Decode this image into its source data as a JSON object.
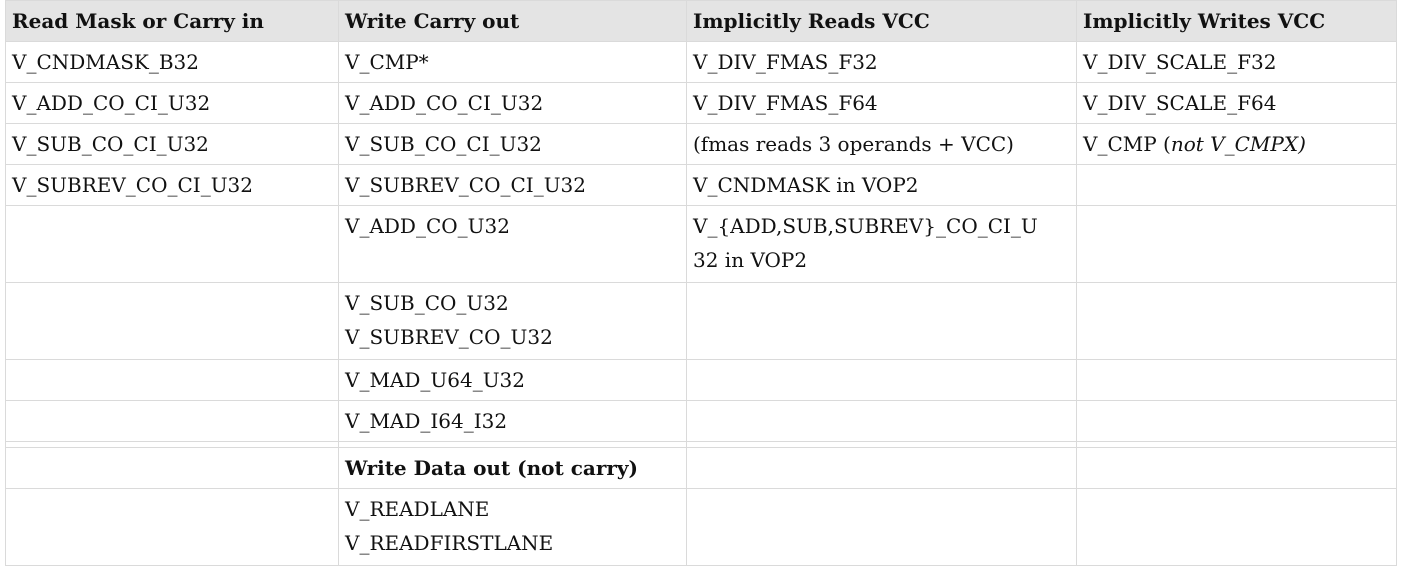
{
  "table": {
    "headers": [
      "Read Mask or Carry in",
      "Write Carry out",
      "Implicitly Reads VCC",
      "Implicitly Writes VCC"
    ],
    "rows": [
      {
        "read_mask": "V_CNDMASK_B32",
        "write_carry": "V_CMP*",
        "reads_vcc": "V_DIV_FMAS_F32",
        "writes_vcc": "V_DIV_SCALE_F32"
      },
      {
        "read_mask": "V_ADD_CO_CI_U32",
        "write_carry": "V_ADD_CO_CI_U32",
        "reads_vcc": "V_DIV_FMAS_F64",
        "writes_vcc": "V_DIV_SCALE_F64"
      },
      {
        "read_mask": "V_SUB_CO_CI_U32",
        "write_carry": "V_SUB_CO_CI_U32",
        "reads_vcc": "(fmas reads 3 operands + VCC)",
        "writes_vcc_prefix": "V_CMP (",
        "writes_vcc_italic": "not V_CMPX",
        "writes_vcc_suffix": ")"
      },
      {
        "read_mask": "V_SUBREV_CO_CI_U32",
        "write_carry": "V_SUBREV_CO_CI_U32",
        "reads_vcc": "V_CNDMASK in VOP2",
        "writes_vcc": ""
      },
      {
        "read_mask": "",
        "write_carry": "V_ADD_CO_U32",
        "reads_vcc_line1": "V_{ADD,SUB,SUBREV}_CO_CI_U",
        "reads_vcc_line2": "32 in VOP2",
        "writes_vcc": ""
      },
      {
        "read_mask": "",
        "write_carry_line1": "V_SUB_CO_U32",
        "write_carry_line2": "V_SUBREV_CO_U32",
        "reads_vcc": "",
        "writes_vcc": ""
      },
      {
        "read_mask": "",
        "write_carry": "V_MAD_U64_U32",
        "reads_vcc": "",
        "writes_vcc": ""
      },
      {
        "read_mask": "",
        "write_carry": "V_MAD_I64_I32",
        "reads_vcc": "",
        "writes_vcc": ""
      },
      {
        "read_mask": "",
        "write_carry": "Write Data out (not carry)",
        "reads_vcc": "",
        "writes_vcc": ""
      },
      {
        "read_mask": "",
        "write_carry_line1": "V_READLANE",
        "write_carry_line2": "V_READFIRSTLANE",
        "reads_vcc": "",
        "writes_vcc": ""
      }
    ]
  }
}
